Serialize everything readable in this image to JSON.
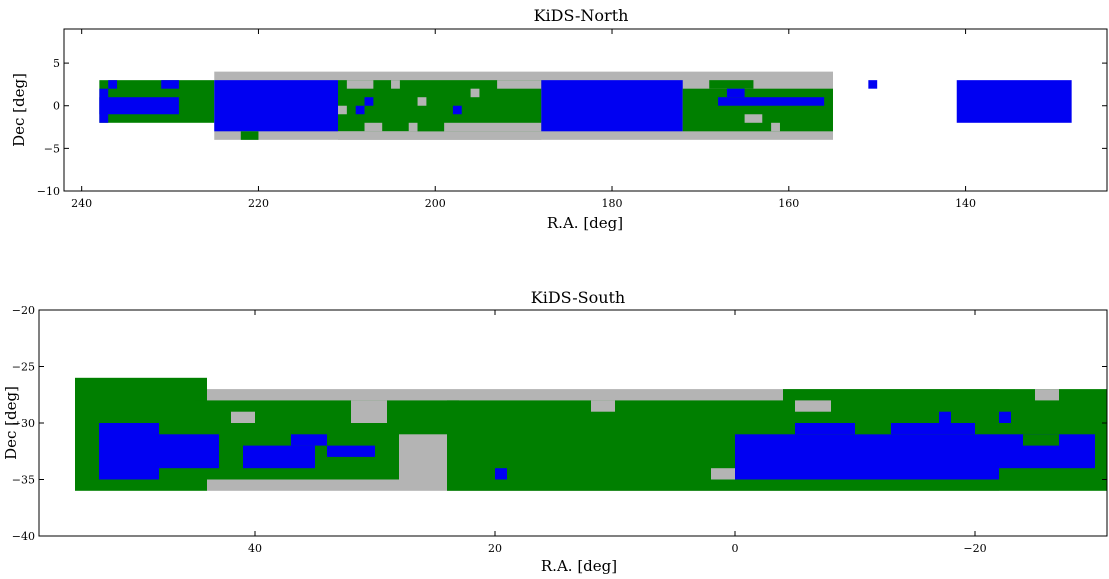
{
  "colors": {
    "gray": "#b4b4b4",
    "green": "#007f00",
    "blue": "#0000f2"
  },
  "chart_data": [
    {
      "type": "heatmap",
      "title": "KiDS-North",
      "xlabel": "R.A. [deg]",
      "ylabel": "Dec [deg]",
      "xlim": [
        242,
        124
      ],
      "ylim": [
        -10,
        9
      ],
      "x_inverted": true,
      "xticks": [
        240,
        220,
        200,
        180,
        160,
        140
      ],
      "yticks": [
        5,
        0,
        -5,
        -10
      ],
      "xtick_labels": [
        "240",
        "220",
        "200",
        "180",
        "160",
        "140"
      ],
      "ytick_labels": [
        "5",
        "0",
        "−5",
        "−10"
      ],
      "grid": false,
      "regions": [
        {
          "color": "gray",
          "ra": [
            225,
            155
          ],
          "dec": [
            -4,
            4
          ]
        },
        {
          "color": "green",
          "ra": [
            238,
            225
          ],
          "dec": [
            -2,
            3
          ]
        },
        {
          "color": "blue",
          "ra": [
            238,
            229
          ],
          "dec": [
            -1,
            1
          ]
        },
        {
          "color": "blue",
          "ra": [
            237,
            236
          ],
          "dec": [
            2,
            3
          ]
        },
        {
          "color": "blue",
          "ra": [
            231,
            229
          ],
          "dec": [
            2,
            3
          ]
        },
        {
          "color": "blue",
          "ra": [
            238,
            237
          ],
          "dec": [
            -2,
            2
          ]
        },
        {
          "color": "blue",
          "ra": [
            225,
            211
          ],
          "dec": [
            -3,
            3
          ]
        },
        {
          "color": "green",
          "ra": [
            222,
            220
          ],
          "dec": [
            -4,
            -3
          ]
        },
        {
          "color": "green",
          "ra": [
            211,
            188
          ],
          "dec": [
            -3,
            3
          ]
        },
        {
          "color": "gray",
          "ra": [
            210,
            207
          ],
          "dec": [
            2,
            3
          ]
        },
        {
          "color": "gray",
          "ra": [
            205,
            204
          ],
          "dec": [
            2,
            3
          ]
        },
        {
          "color": "gray",
          "ra": [
            193,
            188
          ],
          "dec": [
            2,
            3
          ]
        },
        {
          "color": "gray",
          "ra": [
            202,
            201
          ],
          "dec": [
            0,
            1
          ]
        },
        {
          "color": "gray",
          "ra": [
            211,
            210
          ],
          "dec": [
            -1,
            0
          ]
        },
        {
          "color": "gray",
          "ra": [
            196,
            195
          ],
          "dec": [
            1,
            2
          ]
        },
        {
          "color": "blue",
          "ra": [
            208,
            207
          ],
          "dec": [
            0,
            1
          ]
        },
        {
          "color": "blue",
          "ra": [
            209,
            208
          ],
          "dec": [
            -1,
            0
          ]
        },
        {
          "color": "blue",
          "ra": [
            198,
            197
          ],
          "dec": [
            -1,
            0
          ]
        },
        {
          "color": "gray",
          "ra": [
            211,
            188
          ],
          "dec": [
            -4,
            -3
          ]
        },
        {
          "color": "gray",
          "ra": [
            208,
            206
          ],
          "dec": [
            -3,
            -2
          ]
        },
        {
          "color": "gray",
          "ra": [
            203,
            202
          ],
          "dec": [
            -3,
            -2
          ]
        },
        {
          "color": "gray",
          "ra": [
            199,
            188
          ],
          "dec": [
            -3,
            -2
          ]
        },
        {
          "color": "green",
          "ra": [
            202,
            199
          ],
          "dec": [
            -3,
            -2
          ]
        },
        {
          "color": "blue",
          "ra": [
            188,
            172
          ],
          "dec": [
            -3,
            3
          ]
        },
        {
          "color": "green",
          "ra": [
            172,
            155
          ],
          "dec": [
            -3,
            2
          ]
        },
        {
          "color": "green",
          "ra": [
            169,
            164
          ],
          "dec": [
            2,
            3
          ]
        },
        {
          "color": "blue",
          "ra": [
            168,
            156
          ],
          "dec": [
            0,
            1
          ]
        },
        {
          "color": "blue",
          "ra": [
            167,
            165
          ],
          "dec": [
            1,
            2
          ]
        },
        {
          "color": "gray",
          "ra": [
            165,
            163
          ],
          "dec": [
            -2,
            -1
          ]
        },
        {
          "color": "gray",
          "ra": [
            162,
            161
          ],
          "dec": [
            -3,
            -2
          ]
        },
        {
          "color": "blue",
          "ra": [
            151,
            150
          ],
          "dec": [
            2,
            3
          ]
        },
        {
          "color": "blue",
          "ra": [
            141,
            128
          ],
          "dec": [
            -2,
            3
          ]
        }
      ]
    },
    {
      "type": "heatmap",
      "title": "KiDS-South",
      "xlabel": "R.A. [deg]",
      "ylabel": "Dec [deg]",
      "xlim": [
        58,
        -31
      ],
      "ylim": [
        -40,
        -20
      ],
      "x_inverted": true,
      "xticks": [
        40,
        20,
        0,
        -20
      ],
      "yticks": [
        -20,
        -25,
        -30,
        -35,
        -40
      ],
      "xtick_labels": [
        "40",
        "20",
        "0",
        "−20"
      ],
      "ytick_labels": [
        "−20",
        "−25",
        "−30",
        "−35",
        "−40"
      ],
      "grid": false,
      "regions": [
        {
          "color": "gray",
          "ra": [
            44,
            -22
          ],
          "dec": [
            -36,
            -27
          ]
        },
        {
          "color": "green",
          "ra": [
            55,
            44
          ],
          "dec": [
            -36,
            -26
          ]
        },
        {
          "color": "green",
          "ra": [
            45,
            23
          ],
          "dec": [
            -35,
            -28
          ]
        },
        {
          "color": "green",
          "ra": [
            24,
            -4
          ],
          "dec": [
            -36,
            -28
          ]
        },
        {
          "color": "green",
          "ra": [
            -4,
            -31
          ],
          "dec": [
            -36,
            -27
          ]
        },
        {
          "color": "gray",
          "ra": [
            28,
            24
          ],
          "dec": [
            -35,
            -31
          ]
        },
        {
          "color": "gray",
          "ra": [
            32,
            29
          ],
          "dec": [
            -30,
            -28
          ]
        },
        {
          "color": "gray",
          "ra": [
            42,
            40
          ],
          "dec": [
            -30,
            -29
          ]
        },
        {
          "color": "gray",
          "ra": [
            12,
            10
          ],
          "dec": [
            -29,
            -28
          ]
        },
        {
          "color": "gray",
          "ra": [
            2,
            0
          ],
          "dec": [
            -35,
            -34
          ]
        },
        {
          "color": "gray",
          "ra": [
            -5,
            -8
          ],
          "dec": [
            -29,
            -28
          ]
        },
        {
          "color": "gray",
          "ra": [
            -25,
            -27
          ],
          "dec": [
            -28,
            -27
          ]
        },
        {
          "color": "blue",
          "ra": [
            53,
            48
          ],
          "dec": [
            -35,
            -30
          ]
        },
        {
          "color": "blue",
          "ra": [
            48,
            43
          ],
          "dec": [
            -34,
            -31
          ]
        },
        {
          "color": "blue",
          "ra": [
            41,
            35
          ],
          "dec": [
            -34,
            -32
          ]
        },
        {
          "color": "blue",
          "ra": [
            37,
            34
          ],
          "dec": [
            -32,
            -31
          ]
        },
        {
          "color": "blue",
          "ra": [
            34,
            30
          ],
          "dec": [
            -33,
            -32
          ]
        },
        {
          "color": "blue",
          "ra": [
            20,
            19
          ],
          "dec": [
            -35,
            -34
          ]
        },
        {
          "color": "blue",
          "ra": [
            -4,
            -5
          ],
          "dec": [
            -35,
            -34
          ]
        },
        {
          "color": "blue",
          "ra": [
            0,
            -22
          ],
          "dec": [
            -35,
            -31
          ]
        },
        {
          "color": "blue",
          "ra": [
            -5,
            -12
          ],
          "dec": [
            -31,
            -30
          ]
        },
        {
          "color": "blue",
          "ra": [
            -12,
            -20
          ],
          "dec": [
            -31,
            -30
          ]
        },
        {
          "color": "blue",
          "ra": [
            -22,
            -30
          ],
          "dec": [
            -34,
            -31
          ]
        },
        {
          "color": "blue",
          "ra": [
            -17,
            -18
          ],
          "dec": [
            -30,
            -29
          ]
        },
        {
          "color": "blue",
          "ra": [
            -22,
            -23
          ],
          "dec": [
            -30,
            -29
          ]
        },
        {
          "color": "green",
          "ra": [
            -10,
            -13
          ],
          "dec": [
            -31,
            -30
          ]
        },
        {
          "color": "green",
          "ra": [
            -24,
            -27
          ],
          "dec": [
            -32,
            -31
          ]
        }
      ]
    }
  ]
}
